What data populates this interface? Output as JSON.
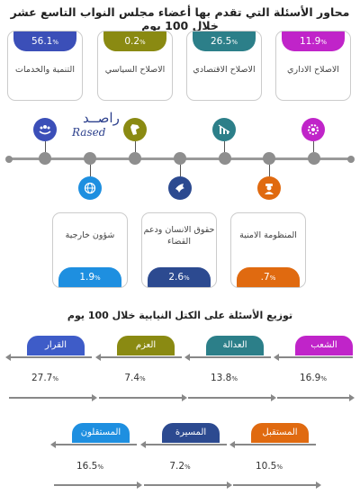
{
  "title": "محاور الأسئلة التي تقدم بها أعضاء مجلس النواب التاسع عشر خلال 100 يوم",
  "logo": {
    "arabic": "راصــد",
    "english": "Rased"
  },
  "axes_top": [
    {
      "label": "التنمية والخدمات",
      "value": "56.1",
      "unit": "%",
      "color": "#3b4fb8",
      "icon": "hands-people-icon"
    },
    {
      "label": "الاصلاح السياسي",
      "value": "0.2",
      "unit": "%",
      "color": "#8a8a12",
      "icon": "jordan-map-icon"
    },
    {
      "label": "الاصلاح الاقتصادي",
      "value": "26.5",
      "unit": "%",
      "color": "#2c7f89",
      "icon": "chart-down-icon"
    },
    {
      "label": "الاصلاح الاداري",
      "value": "11.9",
      "unit": "%",
      "color": "#c024c9",
      "icon": "gear-bulb-icon"
    }
  ],
  "axes_bottom": [
    {
      "label": "شؤون خارجية",
      "value": "1.9",
      "unit": "%",
      "color": "#1e8fe0",
      "icon": "globe-icon"
    },
    {
      "label": "حقوق الانسان ودعم القضاء",
      "value": "2.6",
      "unit": "%",
      "color": "#2c4a90",
      "icon": "dove-icon"
    },
    {
      "label": "المنظومة الامنية",
      "value": ".7",
      "unit": "%",
      "color": "#e06a10",
      "icon": "officer-icon"
    }
  ],
  "subtitle": "توزيع الأسئلة على الكتل النيابية خلال 100 يوم",
  "blocs_row1": [
    {
      "name": "القرار",
      "value": "27.7",
      "unit": "%",
      "color": "#3e5cc8"
    },
    {
      "name": "العزم",
      "value": "7.4",
      "unit": "%",
      "color": "#8a8a12"
    },
    {
      "name": "العدالة",
      "value": "13.8",
      "unit": "%",
      "color": "#2c7f89"
    },
    {
      "name": "الشعب",
      "value": "16.9",
      "unit": "%",
      "color": "#c024c9"
    }
  ],
  "blocs_row2": [
    {
      "name": "المستقلون",
      "value": "16.5",
      "unit": "%",
      "color": "#1e8fe0"
    },
    {
      "name": "المسيرة",
      "value": "7.2",
      "unit": "%",
      "color": "#2c4a90"
    },
    {
      "name": "المستقبل",
      "value": "10.5",
      "unit": "%",
      "color": "#e06a10"
    }
  ]
}
